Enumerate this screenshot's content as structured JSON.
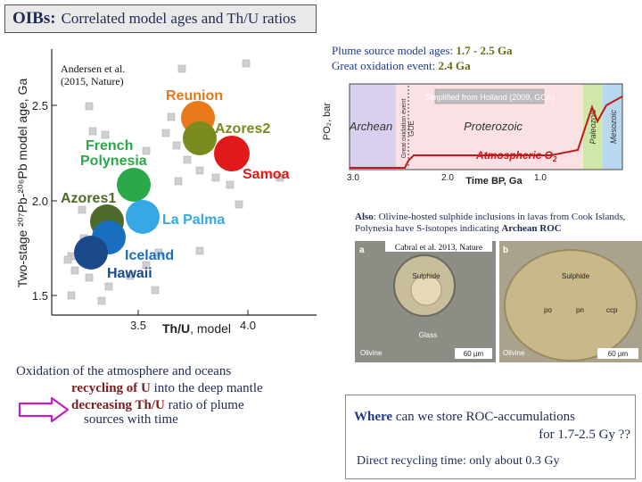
{
  "title": {
    "bold": "OIBs:",
    "rest": "Correlated model ages and Th/U ratios"
  },
  "left_chart": {
    "citation_line1": "Andersen et al.",
    "citation_line2": "(2015, Nature)",
    "ylabel": "Two-stage ²⁰⁷Pb-²⁰⁶Pb model age, Ga",
    "xlabel_bold": "Th/U",
    "xlabel_rest": ", model",
    "yticks": [
      "2.5",
      "2.0",
      "1.5"
    ],
    "xticks": [
      "3.5",
      "4.0"
    ],
    "labels": {
      "reunion": "Reunion",
      "azores2": "Azores2",
      "samoa": "Samoa",
      "french": "French",
      "polynesia": "Polynesia",
      "azores1": "Azores1",
      "lapalma": "La Palma",
      "iceland": "Iceland",
      "hawaii": "Hawaii"
    },
    "colors": {
      "reunion": "#e8781a",
      "azores2": "#7a8a1c",
      "samoa": "#e01a1a",
      "french": "#2aa84a",
      "azores1": "#4e6a2a",
      "lapalma": "#36a8e6",
      "iceland": "#1a6ec0",
      "hawaii": "#1a4a8a"
    }
  },
  "plume_text": {
    "line1_label": "Plume source model ages:",
    "line1_value": "1.7 - 2.5 Ga",
    "line2_label": "Great oxidation event:",
    "line2_value": "2.4 Ga"
  },
  "o2_chart": {
    "ylabel": "PO₂, bar",
    "simplified": "Simplified from Holland (2009, GCA)",
    "archean": "Archean",
    "proterozoic": "Proterozoic",
    "paleozoic": "Paleozoic",
    "mesozoic": "Mesozoic",
    "goe_vertical": "Great oxidation event",
    "goe": "GOE",
    "atmospheric_prefix": "Atmospheric O",
    "atmospheric_sub": "2",
    "xticks": [
      "3.0",
      "2.0",
      "1.0"
    ],
    "xlabel": "Time BP, Ga"
  },
  "also_text": {
    "bold": "Also",
    "rest": ": Olivine-hosted sulphide inclusions in lavas from Cook Islands, Polynesia have S-isotopes indicating ",
    "rest_bold": "Archean ROC"
  },
  "micro": {
    "citation": "Cabral et al. 2013, Nature",
    "label_a": "a",
    "label_b": "b",
    "sulphide_a": "Sulphide",
    "glass": "Glass",
    "olivine_a": "Olivine",
    "scale_a": "60 µm",
    "sulphide_b": "Sulphide",
    "po": "po",
    "pn": "pn",
    "ccp": "ccp",
    "olivine_b": "Olivine",
    "scale_b": "60 µm"
  },
  "oxidation": {
    "line1": "Oxidation of the atmosphere and oceans",
    "line2_bold": "recycling of U",
    "line2_rest": " into the deep mantle",
    "line3_bold": "decreasing Th/U",
    "line3_rest": " ratio of plume",
    "line4": "sources with time"
  },
  "question": {
    "where": "Where",
    "rest": " can we store ROC-accumulations",
    "line2": "for 1.7-2.5 Gy ??",
    "direct": "Direct recycling time: only about 0.3 Gy"
  }
}
